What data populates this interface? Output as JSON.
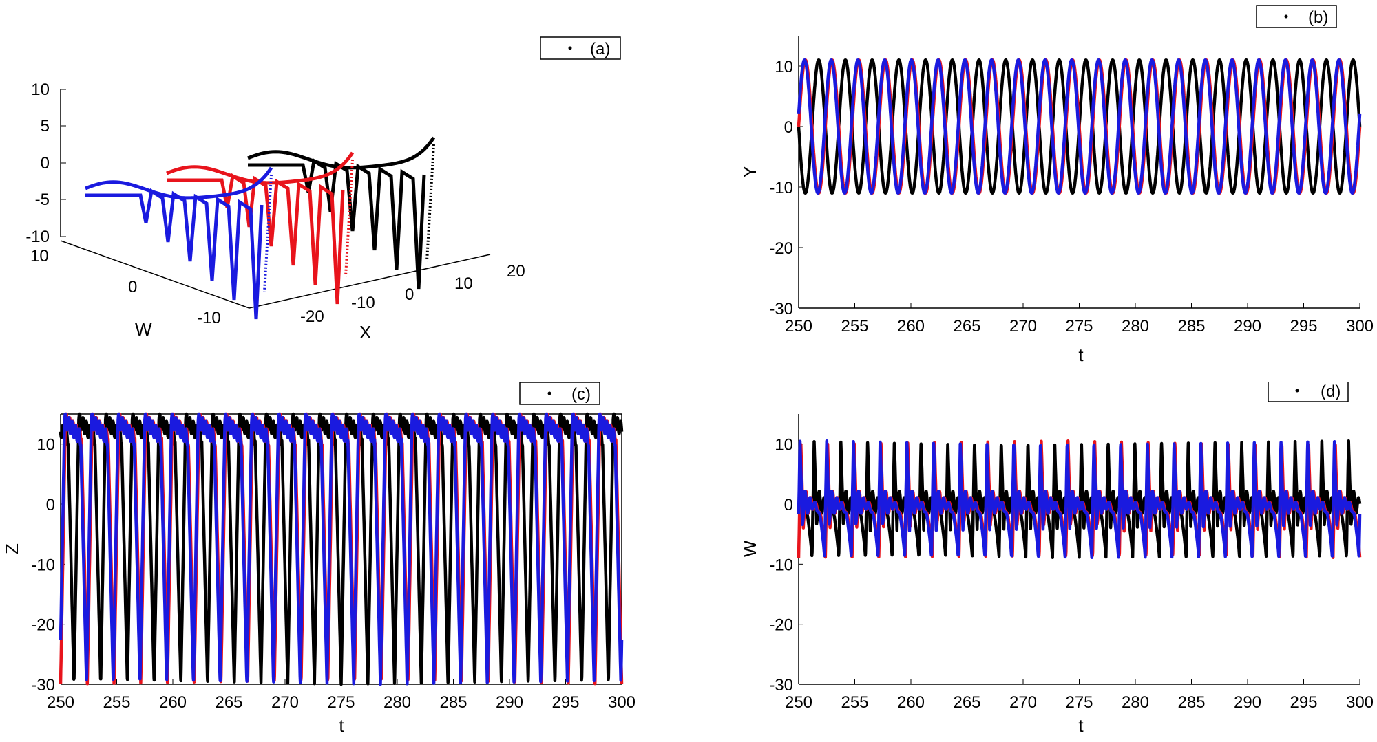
{
  "chart_data": [
    {
      "panel": "a",
      "type": "line",
      "legend": "(a)",
      "xlabel": "X",
      "ylabel": "W",
      "x_ticks": [
        "-20",
        "-10",
        "0",
        "10",
        "20"
      ],
      "y_ticks": [
        "10",
        "0",
        "-10"
      ],
      "z_ticks": [
        "10",
        "5",
        "0",
        "-5",
        "-10"
      ],
      "series_colors": [
        "#000000",
        "#e8141c",
        "#1a1adf"
      ]
    },
    {
      "panel": "b",
      "type": "line",
      "legend": "(b)",
      "xlabel": "t",
      "ylabel": "Y",
      "xlim": [
        250,
        300
      ],
      "ylim": [
        -30,
        15
      ],
      "x_ticks": [
        "250",
        "255",
        "260",
        "265",
        "270",
        "275",
        "280",
        "285",
        "290",
        "295",
        "300"
      ],
      "y_ticks": [
        "10",
        "0",
        "-10",
        "-20",
        "-30"
      ],
      "series_colors": [
        "#000000",
        "#e8141c",
        "#1a1adf"
      ],
      "amplitude": 11,
      "cycles": 21
    },
    {
      "panel": "c",
      "type": "line",
      "legend": "(c)",
      "xlabel": "t",
      "ylabel": "Z",
      "xlim": [
        250,
        300
      ],
      "ylim": [
        -30,
        15
      ],
      "x_ticks": [
        "250",
        "255",
        "260",
        "265",
        "270",
        "275",
        "280",
        "285",
        "290",
        "295",
        "300"
      ],
      "y_ticks": [
        "10",
        "0",
        "-10",
        "-20",
        "-30"
      ],
      "series_colors": [
        "#000000",
        "#e8141c",
        "#1a1adf"
      ],
      "cycles": 21
    },
    {
      "panel": "d",
      "type": "line",
      "legend": "(d)",
      "xlabel": "t",
      "ylabel": "W",
      "xlim": [
        250,
        300
      ],
      "ylim": [
        -30,
        15
      ],
      "x_ticks": [
        "250",
        "255",
        "260",
        "265",
        "270",
        "275",
        "280",
        "285",
        "290",
        "295",
        "300"
      ],
      "y_ticks": [
        "10",
        "0",
        "-10",
        "-20",
        "-30"
      ],
      "series_colors": [
        "#000000",
        "#e8141c",
        "#1a1adf"
      ],
      "amplitude": 10,
      "cycles": 21
    }
  ]
}
